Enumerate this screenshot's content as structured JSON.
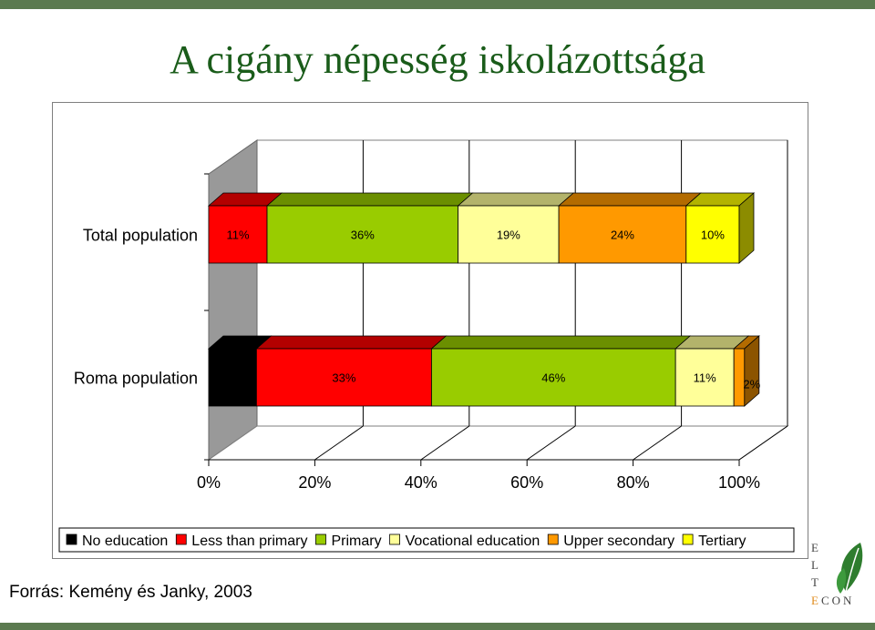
{
  "title": "A cigány népesség iskolázottsága",
  "source": "Forrás: Kemény és Janky, 2003",
  "logo": {
    "letters": [
      "E",
      "L",
      "T"
    ],
    "econ_first": "E",
    "econ_rest": "CON"
  },
  "chart_data": {
    "type": "bar",
    "orientation": "horizontal",
    "stacked": "percent",
    "three_d": true,
    "categories": [
      "Total population",
      "Roma population"
    ],
    "series": [
      {
        "name": "No education",
        "color": "#000000",
        "values": [
          0,
          9
        ]
      },
      {
        "name": "Less than primary",
        "color": "#ff0000",
        "values": [
          11,
          33
        ]
      },
      {
        "name": "Primary",
        "color": "#99cc00",
        "values": [
          36,
          46
        ]
      },
      {
        "name": "Vocational education",
        "color": "#ffff99",
        "values": [
          19,
          11
        ]
      },
      {
        "name": "Upper secondary",
        "color": "#ff9900",
        "values": [
          24,
          2
        ]
      },
      {
        "name": "Tertiary",
        "color": "#ffff00",
        "values": [
          10,
          0
        ]
      }
    ],
    "data_labels": [
      [
        "",
        "11%",
        "36%",
        "19%",
        "24%",
        "10%"
      ],
      [
        "9%",
        "33%",
        "46%",
        "11%",
        "2%",
        ""
      ]
    ],
    "x_ticks": [
      "0%",
      "20%",
      "40%",
      "60%",
      "80%",
      "100%"
    ],
    "xlim": [
      0,
      100
    ],
    "grid": true,
    "legend_position": "bottom"
  }
}
